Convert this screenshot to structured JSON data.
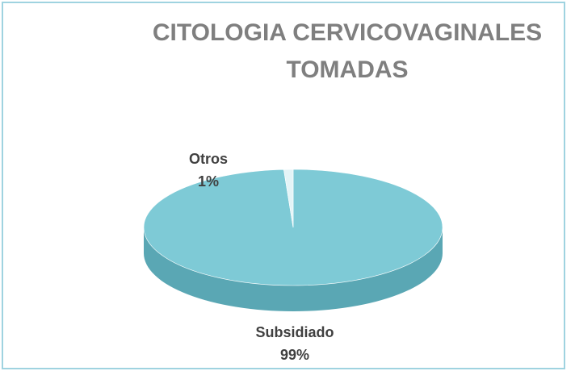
{
  "chart_data": {
    "type": "pie",
    "title": "CITOLOGIA CERVICOVAGINALES TOMADAS",
    "categories": [
      "Subsidiado",
      "Otros"
    ],
    "values": [
      99,
      1
    ],
    "value_labels": [
      "99%",
      "1%"
    ],
    "colors": [
      "#7ecad6",
      "#e4f4f7"
    ]
  }
}
